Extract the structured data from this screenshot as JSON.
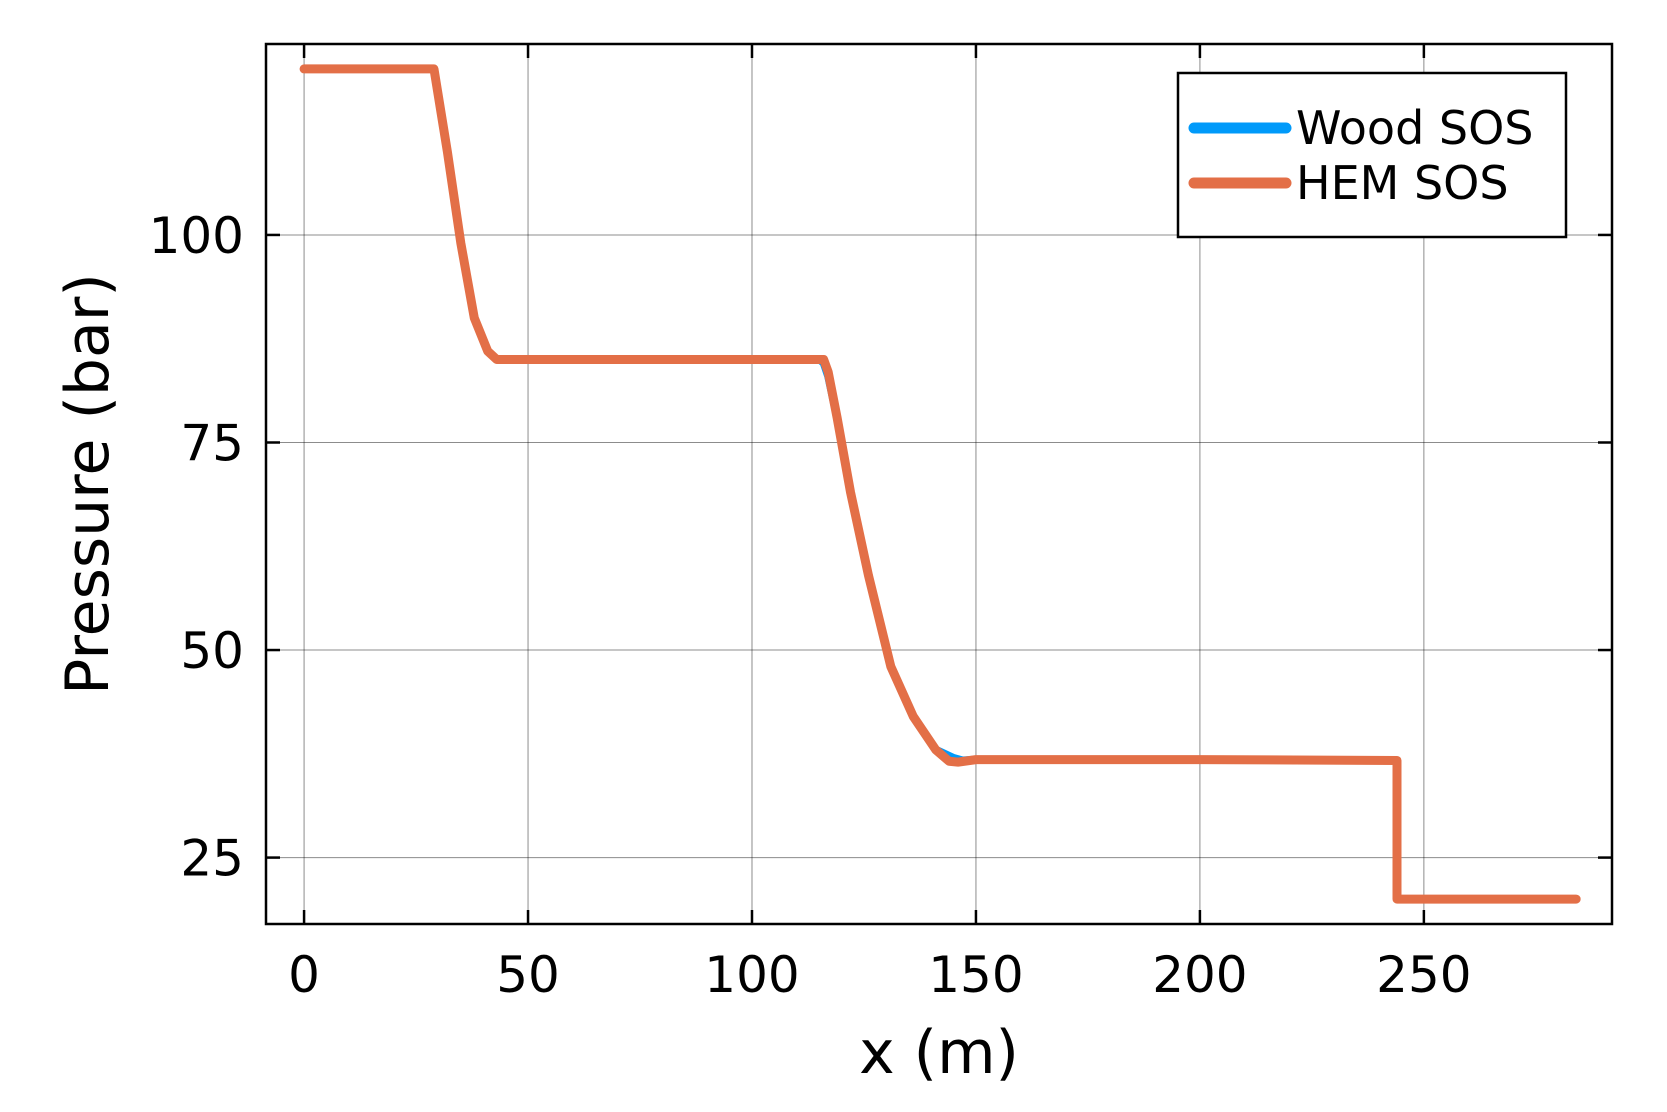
{
  "chart_data": {
    "type": "line",
    "xlabel": "x (m)",
    "ylabel": "Pressure (bar)",
    "xlim": [
      -8.5,
      292
    ],
    "ylim": [
      17,
      123
    ],
    "xticks": [
      0,
      50,
      100,
      150,
      200,
      250
    ],
    "yticks": [
      25,
      50,
      75,
      100
    ],
    "grid": true,
    "legend_position": "top-right",
    "series": [
      {
        "name": "Wood SOS",
        "color": "#009AFA",
        "x": [
          0,
          29,
          32,
          35,
          38,
          41,
          43,
          50,
          100,
          115,
          116,
          117,
          119,
          122,
          126,
          131,
          136,
          141,
          145,
          147,
          150,
          200,
          244,
          244,
          284
        ],
        "y": [
          120,
          120,
          110,
          99,
          90,
          86,
          85,
          85,
          85,
          85,
          84.6,
          83,
          78,
          69,
          59,
          48,
          42,
          38,
          37,
          36.7,
          36.8,
          36.8,
          36.7,
          20,
          20
        ]
      },
      {
        "name": "HEM SOS",
        "color": "#E36F47",
        "x": [
          0,
          29,
          32,
          35,
          38,
          41,
          43,
          50,
          100,
          116,
          117,
          119,
          122,
          126,
          131,
          136,
          141,
          144,
          146,
          150,
          200,
          244,
          244,
          284
        ],
        "y": [
          120,
          120,
          110,
          99,
          90,
          86,
          85,
          85,
          85,
          85,
          83.5,
          78,
          69,
          59,
          48,
          42,
          38,
          36.6,
          36.5,
          36.8,
          36.8,
          36.7,
          20,
          20
        ]
      }
    ]
  }
}
